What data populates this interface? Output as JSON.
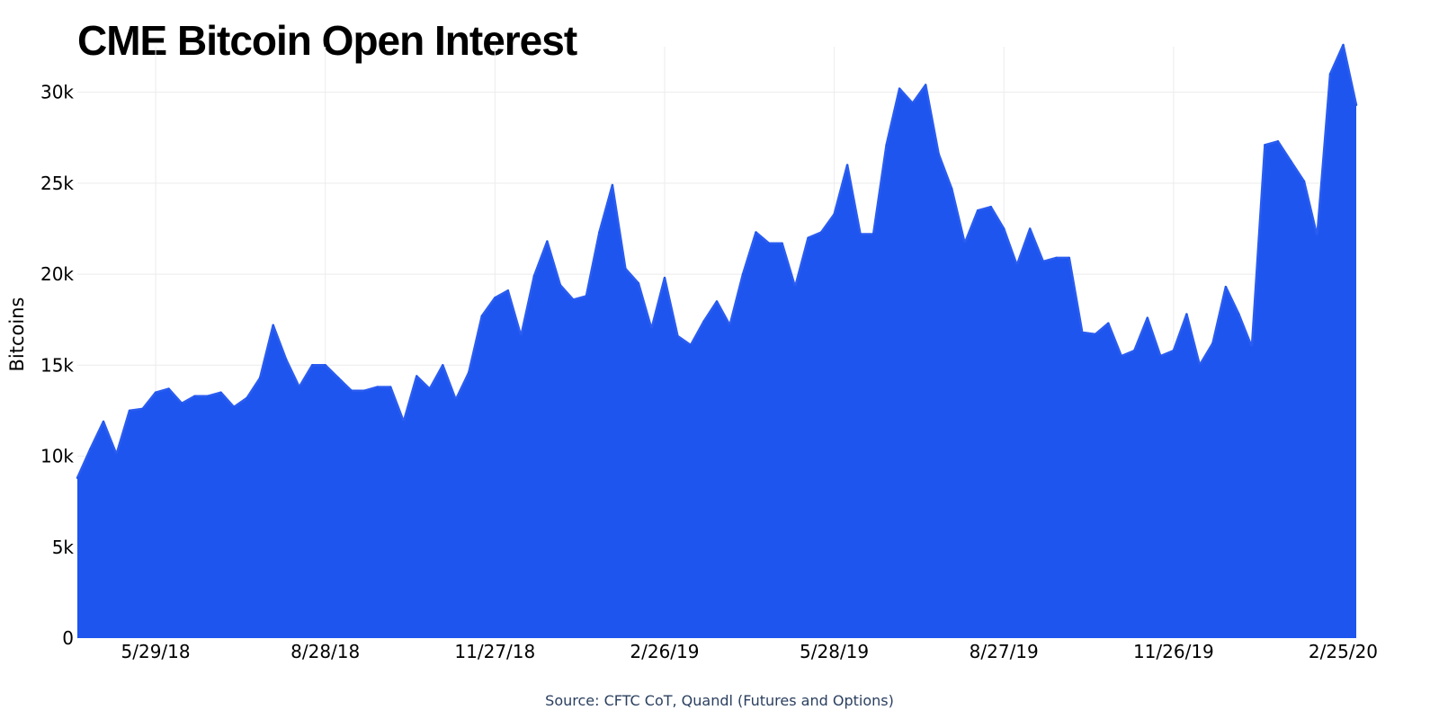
{
  "chart_data": {
    "type": "area",
    "title": "CME Bitcoin Open Interest",
    "xlabel": "",
    "ylabel": "Bitcoins",
    "source": "Source: CFTC CoT, Quandl (Futures and Options)",
    "ylim": [
      0,
      32500
    ],
    "yticks": [
      0,
      5000,
      10000,
      15000,
      20000,
      25000,
      30000
    ],
    "ytick_labels": [
      "0",
      "5k",
      "10k",
      "15k",
      "20k",
      "25k",
      "30k"
    ],
    "xlim": [
      "2018-04-17",
      "2020-03-03"
    ],
    "xticks": [
      "2018-05-29",
      "2018-08-28",
      "2018-11-27",
      "2019-02-26",
      "2019-05-28",
      "2019-08-27",
      "2019-11-26",
      "2020-02-25"
    ],
    "xtick_labels": [
      "5/29/18",
      "8/28/18",
      "11/27/18",
      "2/26/19",
      "5/28/19",
      "8/27/19",
      "11/26/19",
      "2/25/20"
    ],
    "grid": true,
    "color": "#1d55ee",
    "x": [
      "2018-04-17",
      "2018-04-24",
      "2018-05-01",
      "2018-05-08",
      "2018-05-15",
      "2018-05-22",
      "2018-05-29",
      "2018-06-05",
      "2018-06-12",
      "2018-06-19",
      "2018-06-26",
      "2018-07-03",
      "2018-07-10",
      "2018-07-17",
      "2018-07-24",
      "2018-07-31",
      "2018-08-07",
      "2018-08-14",
      "2018-08-21",
      "2018-08-28",
      "2018-09-04",
      "2018-09-11",
      "2018-09-18",
      "2018-09-25",
      "2018-10-02",
      "2018-10-09",
      "2018-10-16",
      "2018-10-23",
      "2018-10-30",
      "2018-11-06",
      "2018-11-13",
      "2018-11-20",
      "2018-11-27",
      "2018-12-04",
      "2018-12-11",
      "2018-12-18",
      "2018-12-25",
      "2019-01-01",
      "2019-01-08",
      "2019-01-15",
      "2019-01-22",
      "2019-01-29",
      "2019-02-05",
      "2019-02-12",
      "2019-02-19",
      "2019-02-26",
      "2019-03-05",
      "2019-03-12",
      "2019-03-19",
      "2019-03-26",
      "2019-04-02",
      "2019-04-09",
      "2019-04-16",
      "2019-04-23",
      "2019-04-30",
      "2019-05-07",
      "2019-05-14",
      "2019-05-21",
      "2019-05-28",
      "2019-06-04",
      "2019-06-11",
      "2019-06-18",
      "2019-06-25",
      "2019-07-02",
      "2019-07-09",
      "2019-07-16",
      "2019-07-23",
      "2019-07-30",
      "2019-08-06",
      "2019-08-13",
      "2019-08-20",
      "2019-08-27",
      "2019-09-03",
      "2019-09-10",
      "2019-09-17",
      "2019-09-24",
      "2019-10-01",
      "2019-10-08",
      "2019-10-15",
      "2019-10-22",
      "2019-10-29",
      "2019-11-05",
      "2019-11-12",
      "2019-11-19",
      "2019-11-26",
      "2019-12-03",
      "2019-12-10",
      "2019-12-17",
      "2019-12-24",
      "2019-12-31",
      "2020-01-07",
      "2020-01-14",
      "2020-01-21",
      "2020-01-28",
      "2020-02-04",
      "2020-02-11",
      "2020-02-18",
      "2020-02-25",
      "2020-03-03"
    ],
    "values": [
      8800,
      10400,
      11900,
      10100,
      12500,
      12600,
      13500,
      13700,
      12900,
      13300,
      13300,
      13500,
      12700,
      13200,
      14300,
      17200,
      15300,
      13800,
      15000,
      15000,
      14300,
      13600,
      13600,
      13800,
      13800,
      11900,
      14400,
      13700,
      15000,
      13100,
      14600,
      17700,
      18700,
      19100,
      16600,
      19900,
      21800,
      19400,
      18600,
      18800,
      22300,
      24900,
      20300,
      19500,
      17000,
      19800,
      16600,
      16100,
      17400,
      18500,
      17200,
      20000,
      22300,
      21700,
      21700,
      19300,
      22000,
      22300,
      23300,
      26000,
      22200,
      22200,
      27100,
      30200,
      29400,
      30400,
      26600,
      24700,
      21700,
      23500,
      23700,
      22500,
      20500,
      22500,
      20700,
      20900,
      20900,
      16800,
      16700,
      17300,
      15500,
      15800,
      17600,
      15500,
      15800,
      17800,
      15000,
      16200,
      19300,
      17800,
      16000,
      27100,
      27300,
      26200,
      25100,
      22100,
      31000,
      32700,
      29300
    ]
  }
}
